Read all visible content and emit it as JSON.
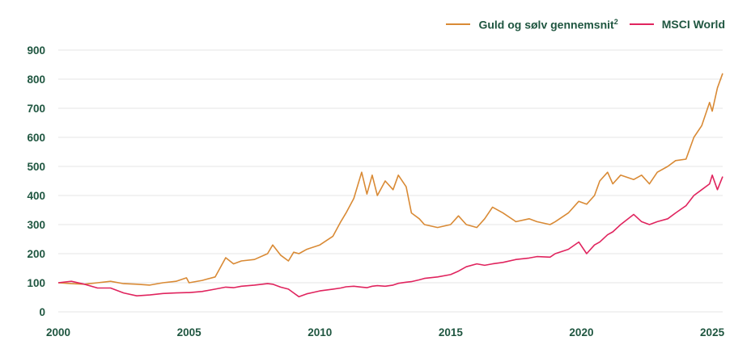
{
  "chart_data": {
    "type": "line",
    "title": "",
    "xlabel": "",
    "ylabel": "",
    "ylim": [
      0,
      900
    ],
    "xlim": [
      2000,
      2025.4
    ],
    "yticks": [
      "0",
      "100",
      "200",
      "300",
      "400",
      "500",
      "600",
      "700",
      "800",
      "900"
    ],
    "xticks": [
      "2000",
      "2005",
      "2010",
      "2015",
      "2020",
      "2025"
    ],
    "grid": true,
    "legend_position": "top-right",
    "colors": {
      "gold": "#d98a35",
      "msci": "#e0245e",
      "text": "#1f5640",
      "grid": "#e4e4e4"
    },
    "x": [
      2000.0,
      2000.5,
      2001.0,
      2001.5,
      2002.0,
      2002.5,
      2003.0,
      2003.5,
      2004.0,
      2004.5,
      2004.9,
      2005.0,
      2005.5,
      2006.0,
      2006.4,
      2006.7,
      2007.0,
      2007.5,
      2008.0,
      2008.2,
      2008.5,
      2008.8,
      2009.0,
      2009.2,
      2009.5,
      2010.0,
      2010.5,
      2010.8,
      2011.0,
      2011.3,
      2011.6,
      2011.8,
      2012.0,
      2012.2,
      2012.5,
      2012.8,
      2013.0,
      2013.3,
      2013.5,
      2013.8,
      2014.0,
      2014.5,
      2015.0,
      2015.3,
      2015.6,
      2016.0,
      2016.3,
      2016.6,
      2017.0,
      2017.5,
      2018.0,
      2018.3,
      2018.8,
      2019.0,
      2019.5,
      2019.9,
      2020.2,
      2020.5,
      2020.7,
      2021.0,
      2021.2,
      2021.5,
      2022.0,
      2022.3,
      2022.6,
      2022.9,
      2023.3,
      2023.6,
      2024.0,
      2024.3,
      2024.6,
      2024.9,
      2025.0,
      2025.2,
      2025.4
    ],
    "series": [
      {
        "name": "Guld og sølv gennemsnit",
        "superscript": "2",
        "values": [
          100,
          97,
          95,
          100,
          105,
          97,
          95,
          92,
          100,
          105,
          117,
          100,
          108,
          120,
          186,
          165,
          175,
          180,
          200,
          230,
          195,
          175,
          205,
          200,
          215,
          230,
          260,
          310,
          340,
          390,
          480,
          405,
          470,
          400,
          450,
          420,
          470,
          430,
          340,
          320,
          300,
          290,
          300,
          330,
          300,
          290,
          320,
          360,
          340,
          310,
          320,
          310,
          300,
          310,
          340,
          380,
          370,
          400,
          450,
          480,
          440,
          470,
          455,
          470,
          440,
          480,
          500,
          520,
          525,
          600,
          640,
          720,
          690,
          770,
          820
        ]
      },
      {
        "name": "MSCI World",
        "values": [
          100,
          105,
          95,
          82,
          82,
          65,
          55,
          58,
          63,
          65,
          66,
          66,
          70,
          78,
          85,
          83,
          88,
          92,
          97,
          95,
          85,
          78,
          65,
          52,
          62,
          72,
          78,
          82,
          86,
          88,
          85,
          83,
          88,
          90,
          88,
          92,
          98,
          102,
          104,
          110,
          115,
          120,
          128,
          140,
          155,
          165,
          160,
          165,
          170,
          180,
          185,
          190,
          188,
          200,
          215,
          240,
          200,
          230,
          240,
          265,
          275,
          300,
          335,
          310,
          300,
          310,
          320,
          340,
          365,
          400,
          420,
          440,
          470,
          420,
          465
        ]
      }
    ]
  }
}
